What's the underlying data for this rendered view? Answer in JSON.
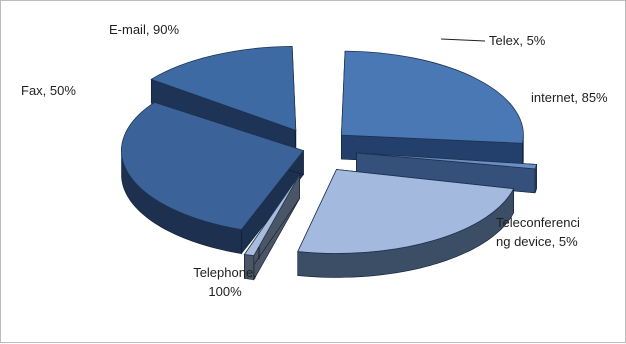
{
  "chart_data": {
    "type": "pie",
    "style": "exploded-3d",
    "title": "",
    "slices": [
      {
        "name": "E-mail",
        "value": 90,
        "label_lines": [
          "E-mail, 90%"
        ],
        "color": "#4a78b5",
        "side": "#22406b"
      },
      {
        "name": "Telex",
        "value": 5,
        "label_lines": [
          "Telex, 5%"
        ],
        "color": "#6b8fc5",
        "side": "#35507a"
      },
      {
        "name": "internet",
        "value": 85,
        "label_lines": [
          "internet, 85%"
        ],
        "color": "#a3b9de",
        "side": "#3c4e66"
      },
      {
        "name": "Teleconferencing device",
        "value": 5,
        "label_lines": [
          "Teleconferenci",
          "ng device, 5%"
        ],
        "color": "#a8bbd9",
        "side": "#4a5566"
      },
      {
        "name": "Telephone",
        "value": 100,
        "label_lines": [
          "Telephone,",
          "100%"
        ],
        "color": "#3c6399",
        "side": "#1d3050"
      },
      {
        "name": "Fax",
        "value": 50,
        "label_lines": [
          "Fax, 50%"
        ],
        "color": "#3e6aa3",
        "side": "#1e3456"
      }
    ],
    "legend": "none",
    "data_labels": "outside-with-leader-lines"
  }
}
